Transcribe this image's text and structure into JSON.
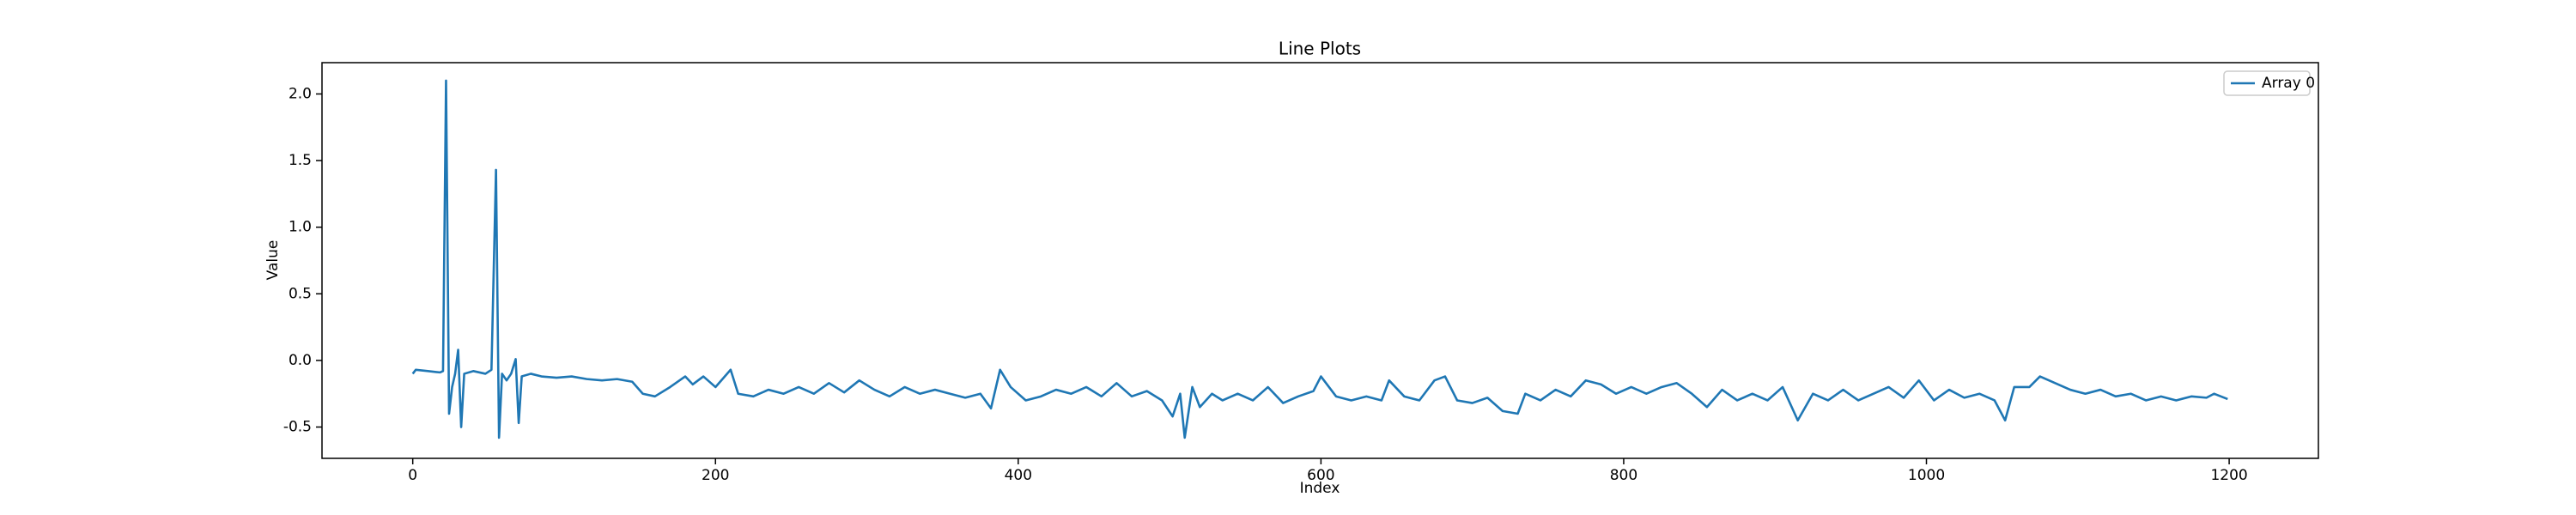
{
  "chart_data": {
    "type": "line",
    "title": "Line Plots",
    "x_label": "Index",
    "y_label": "Value",
    "x": [
      0,
      2,
      10,
      18,
      20,
      22,
      24,
      26,
      28,
      30,
      32,
      34,
      40,
      48,
      52,
      55,
      57,
      59,
      62,
      65,
      68,
      70,
      72,
      78,
      85,
      95,
      105,
      115,
      125,
      135,
      145,
      152,
      160,
      170,
      180,
      185,
      192,
      200,
      210,
      215,
      225,
      235,
      245,
      255,
      265,
      275,
      285,
      295,
      305,
      315,
      325,
      335,
      345,
      355,
      365,
      375,
      382,
      388,
      395,
      405,
      415,
      425,
      435,
      445,
      455,
      465,
      475,
      485,
      495,
      502,
      507,
      510,
      515,
      520,
      528,
      535,
      545,
      555,
      565,
      575,
      585,
      595,
      600,
      610,
      620,
      630,
      640,
      645,
      655,
      665,
      675,
      682,
      690,
      700,
      710,
      720,
      730,
      735,
      745,
      755,
      765,
      775,
      785,
      795,
      805,
      815,
      825,
      835,
      845,
      855,
      865,
      875,
      885,
      895,
      905,
      915,
      925,
      935,
      945,
      955,
      965,
      975,
      985,
      995,
      1005,
      1015,
      1025,
      1035,
      1045,
      1052,
      1058,
      1068,
      1075,
      1085,
      1095,
      1105,
      1115,
      1125,
      1135,
      1145,
      1155,
      1165,
      1175,
      1185,
      1190,
      1199
    ],
    "series": [
      {
        "name": "Array 0",
        "color": "#1f77b4",
        "values": [
          -0.1,
          -0.07,
          -0.08,
          -0.09,
          -0.08,
          2.1,
          -0.4,
          -0.2,
          -0.1,
          0.08,
          -0.5,
          -0.1,
          -0.08,
          -0.1,
          -0.07,
          1.43,
          -0.58,
          -0.1,
          -0.15,
          -0.1,
          0.01,
          -0.47,
          -0.12,
          -0.1,
          -0.12,
          -0.13,
          -0.12,
          -0.14,
          -0.15,
          -0.14,
          -0.16,
          -0.25,
          -0.27,
          -0.2,
          -0.12,
          -0.18,
          -0.12,
          -0.2,
          -0.07,
          -0.25,
          -0.27,
          -0.22,
          -0.25,
          -0.2,
          -0.25,
          -0.17,
          -0.24,
          -0.15,
          -0.22,
          -0.27,
          -0.2,
          -0.25,
          -0.22,
          -0.25,
          -0.28,
          -0.25,
          -0.36,
          -0.07,
          -0.2,
          -0.3,
          -0.27,
          -0.22,
          -0.25,
          -0.2,
          -0.27,
          -0.17,
          -0.27,
          -0.23,
          -0.3,
          -0.42,
          -0.25,
          -0.58,
          -0.2,
          -0.35,
          -0.25,
          -0.3,
          -0.25,
          -0.3,
          -0.2,
          -0.32,
          -0.27,
          -0.23,
          -0.12,
          -0.27,
          -0.3,
          -0.27,
          -0.3,
          -0.15,
          -0.27,
          -0.3,
          -0.15,
          -0.12,
          -0.3,
          -0.32,
          -0.28,
          -0.38,
          -0.4,
          -0.25,
          -0.3,
          -0.22,
          -0.27,
          -0.15,
          -0.18,
          -0.25,
          -0.2,
          -0.25,
          -0.2,
          -0.17,
          -0.25,
          -0.35,
          -0.22,
          -0.3,
          -0.25,
          -0.3,
          -0.2,
          -0.45,
          -0.25,
          -0.3,
          -0.22,
          -0.3,
          -0.25,
          -0.2,
          -0.28,
          -0.15,
          -0.3,
          -0.22,
          -0.28,
          -0.25,
          -0.3,
          -0.45,
          -0.2,
          -0.2,
          -0.12,
          -0.17,
          -0.22,
          -0.25,
          -0.22,
          -0.27,
          -0.25,
          -0.3,
          -0.27,
          -0.3,
          -0.27,
          -0.28,
          -0.25,
          -0.29
        ]
      }
    ],
    "xlim": [
      -59.95,
      1258.95
    ],
    "xticks": [
      0,
      200,
      400,
      600,
      800,
      1000,
      1200
    ],
    "ylim": [
      -0.735,
      2.235
    ],
    "yticks": [
      -0.5,
      {
        "value": 0,
        "label": "0.0"
      },
      0.5,
      {
        "value": 1,
        "label": "1.0"
      },
      1.5,
      {
        "value": 2,
        "label": "2.0"
      }
    ],
    "grid": false,
    "legend": "upper right"
  }
}
